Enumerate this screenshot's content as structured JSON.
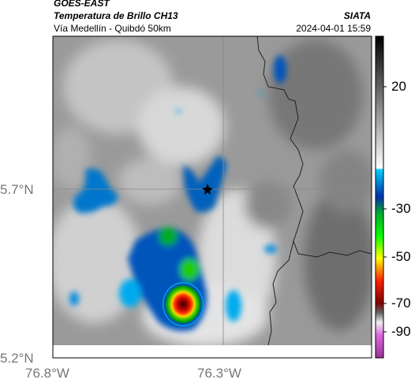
{
  "header": {
    "satellite": "GOES-EAST",
    "product": "Temperatura de Brillo CH13",
    "source": "SIATA",
    "region": "Vía Medellín - Quibdó 50km",
    "timestamp": "2024-04-01 15:59"
  },
  "map": {
    "lat_ticks": [
      "5.7°N",
      "5.2°N"
    ],
    "lon_ticks": [
      "76.8°W",
      "76.3°W"
    ],
    "marker": "target-location"
  },
  "colorbar": {
    "ticks": [
      "20",
      "-30",
      "-50",
      "-70",
      "-90"
    ],
    "colors": [
      "#000000",
      "#ffffff",
      "#00c8ff",
      "#0033aa",
      "#00cc00",
      "#ffff00",
      "#ff0000",
      "#700000",
      "#cc33cc"
    ]
  },
  "colors": {
    "gray_field_dark": "#555555",
    "gray_field_light": "#f0f0f0",
    "coastline": "#222222",
    "grid": "#888888"
  }
}
